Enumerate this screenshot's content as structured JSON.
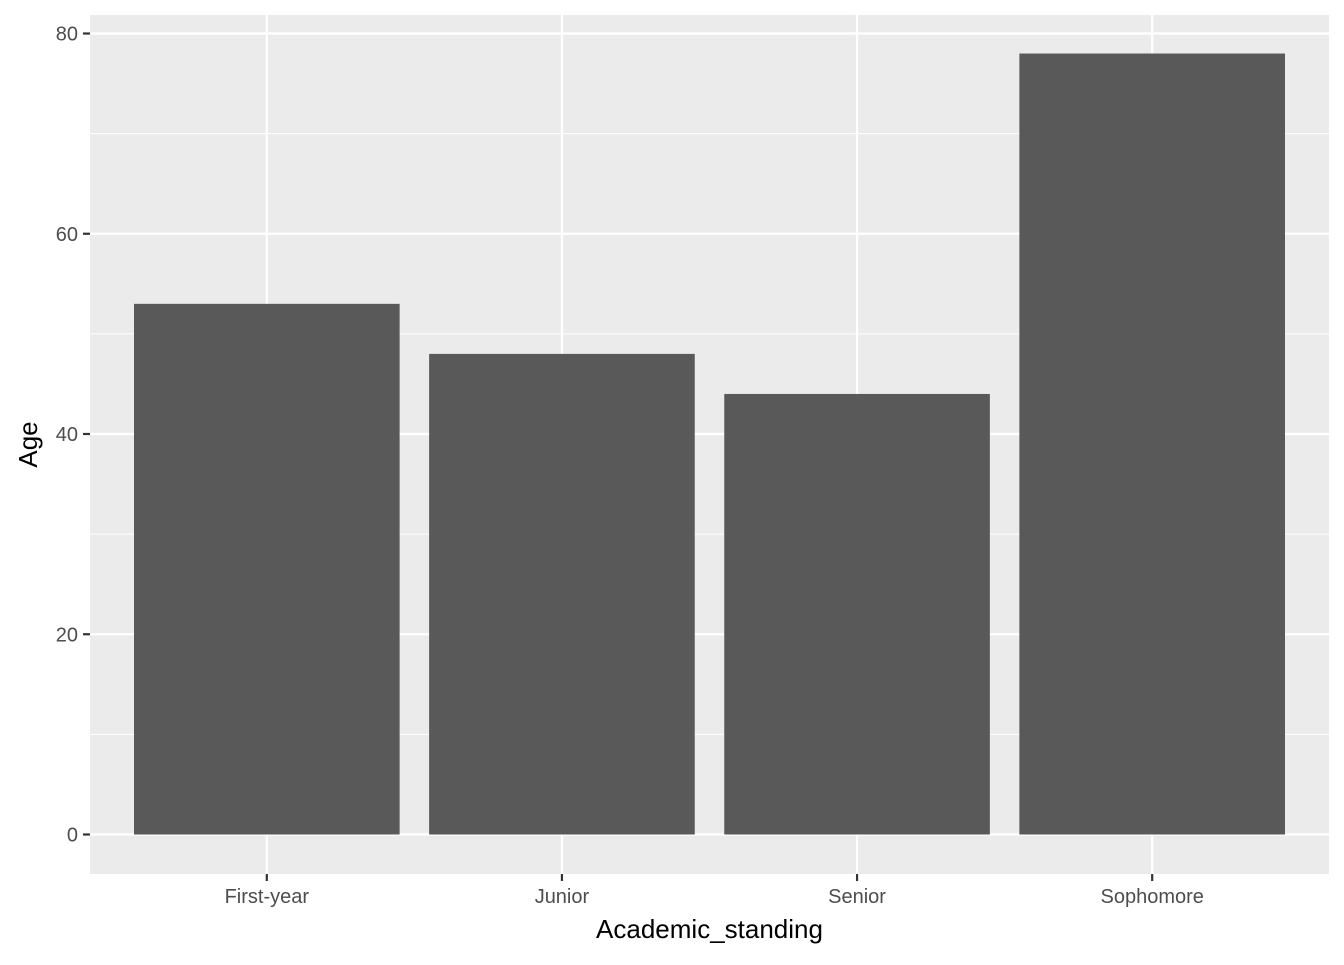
{
  "chart_data": {
    "type": "bar",
    "categories": [
      "First-year",
      "Junior",
      "Senior",
      "Sophomore"
    ],
    "values": [
      53,
      48,
      44,
      78
    ],
    "xlabel": "Academic_standing",
    "ylabel": "Age",
    "ylim": [
      0,
      82
    ],
    "y_ticks": [
      0,
      20,
      40,
      60,
      80
    ],
    "y_minor_ticks": [
      10,
      30,
      50,
      70
    ],
    "grid": true,
    "colors": {
      "panel_background": "#ebebeb",
      "grid": "#ffffff",
      "bar_fill": "#595959",
      "tick_text": "#4d4d4d",
      "tick_mark": "#333333",
      "axis_title": "#000000"
    }
  }
}
